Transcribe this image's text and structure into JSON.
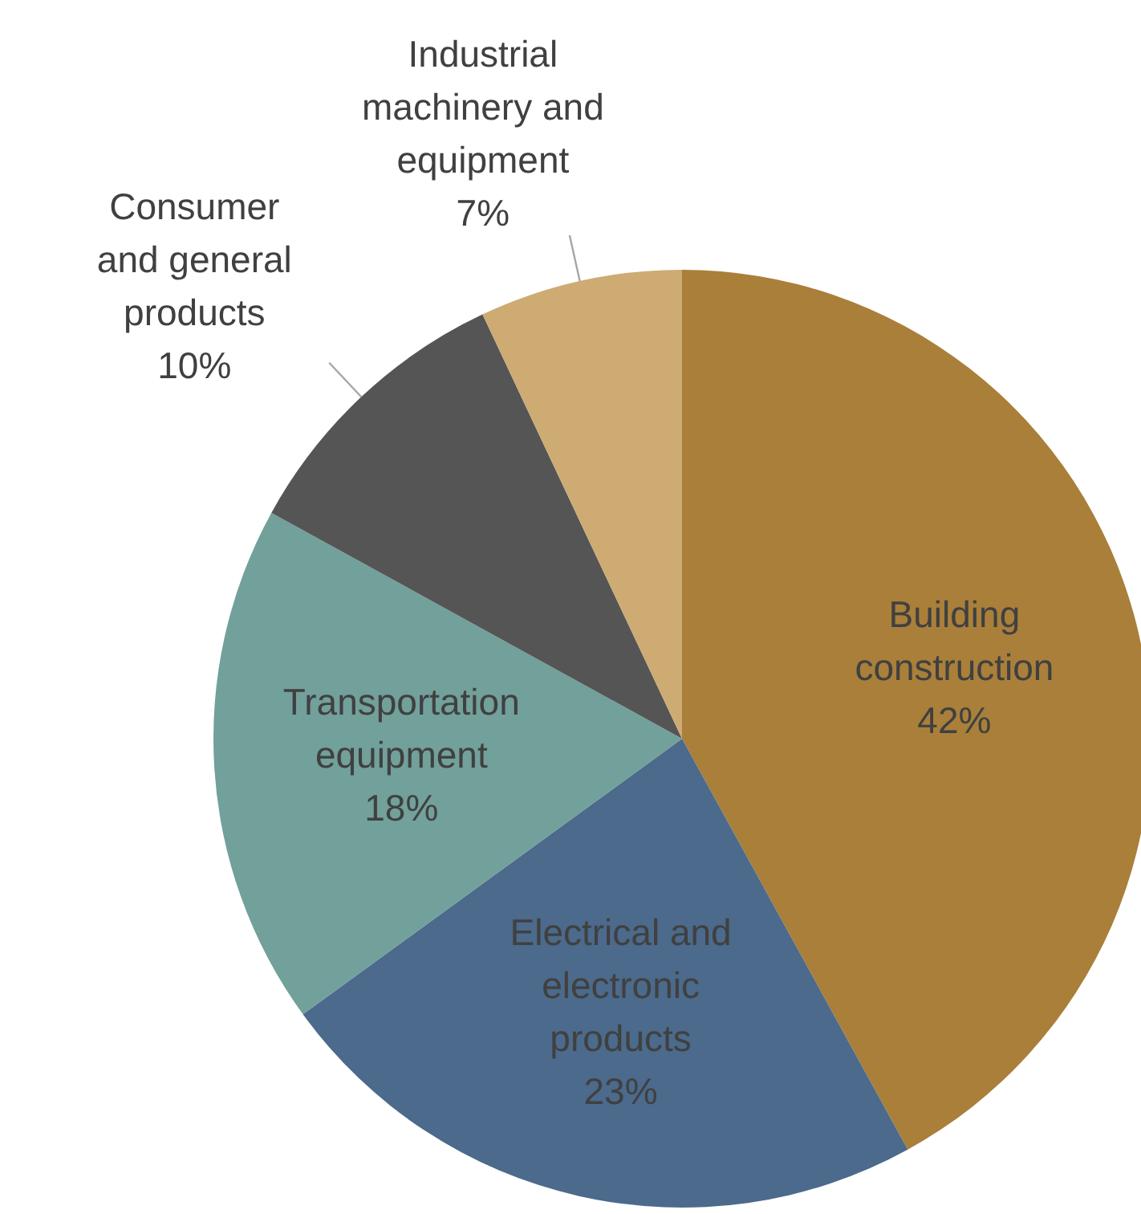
{
  "chart_data": {
    "type": "pie",
    "categories": [
      "Building\nconstruction",
      "Electrical and\nelectronic\nproducts",
      "Transportation\nequipment",
      "Consumer\nand general\nproducts",
      "Industrial\nmachinery and\nequipment"
    ],
    "values": [
      42,
      23,
      18,
      10,
      7
    ],
    "value_labels": [
      "42%",
      "23%",
      "18%",
      "10%",
      "7%"
    ],
    "colors": [
      "#a97f3a",
      "#4b6a8c",
      "#72a09b",
      "#555555",
      "#cdab72"
    ]
  }
}
